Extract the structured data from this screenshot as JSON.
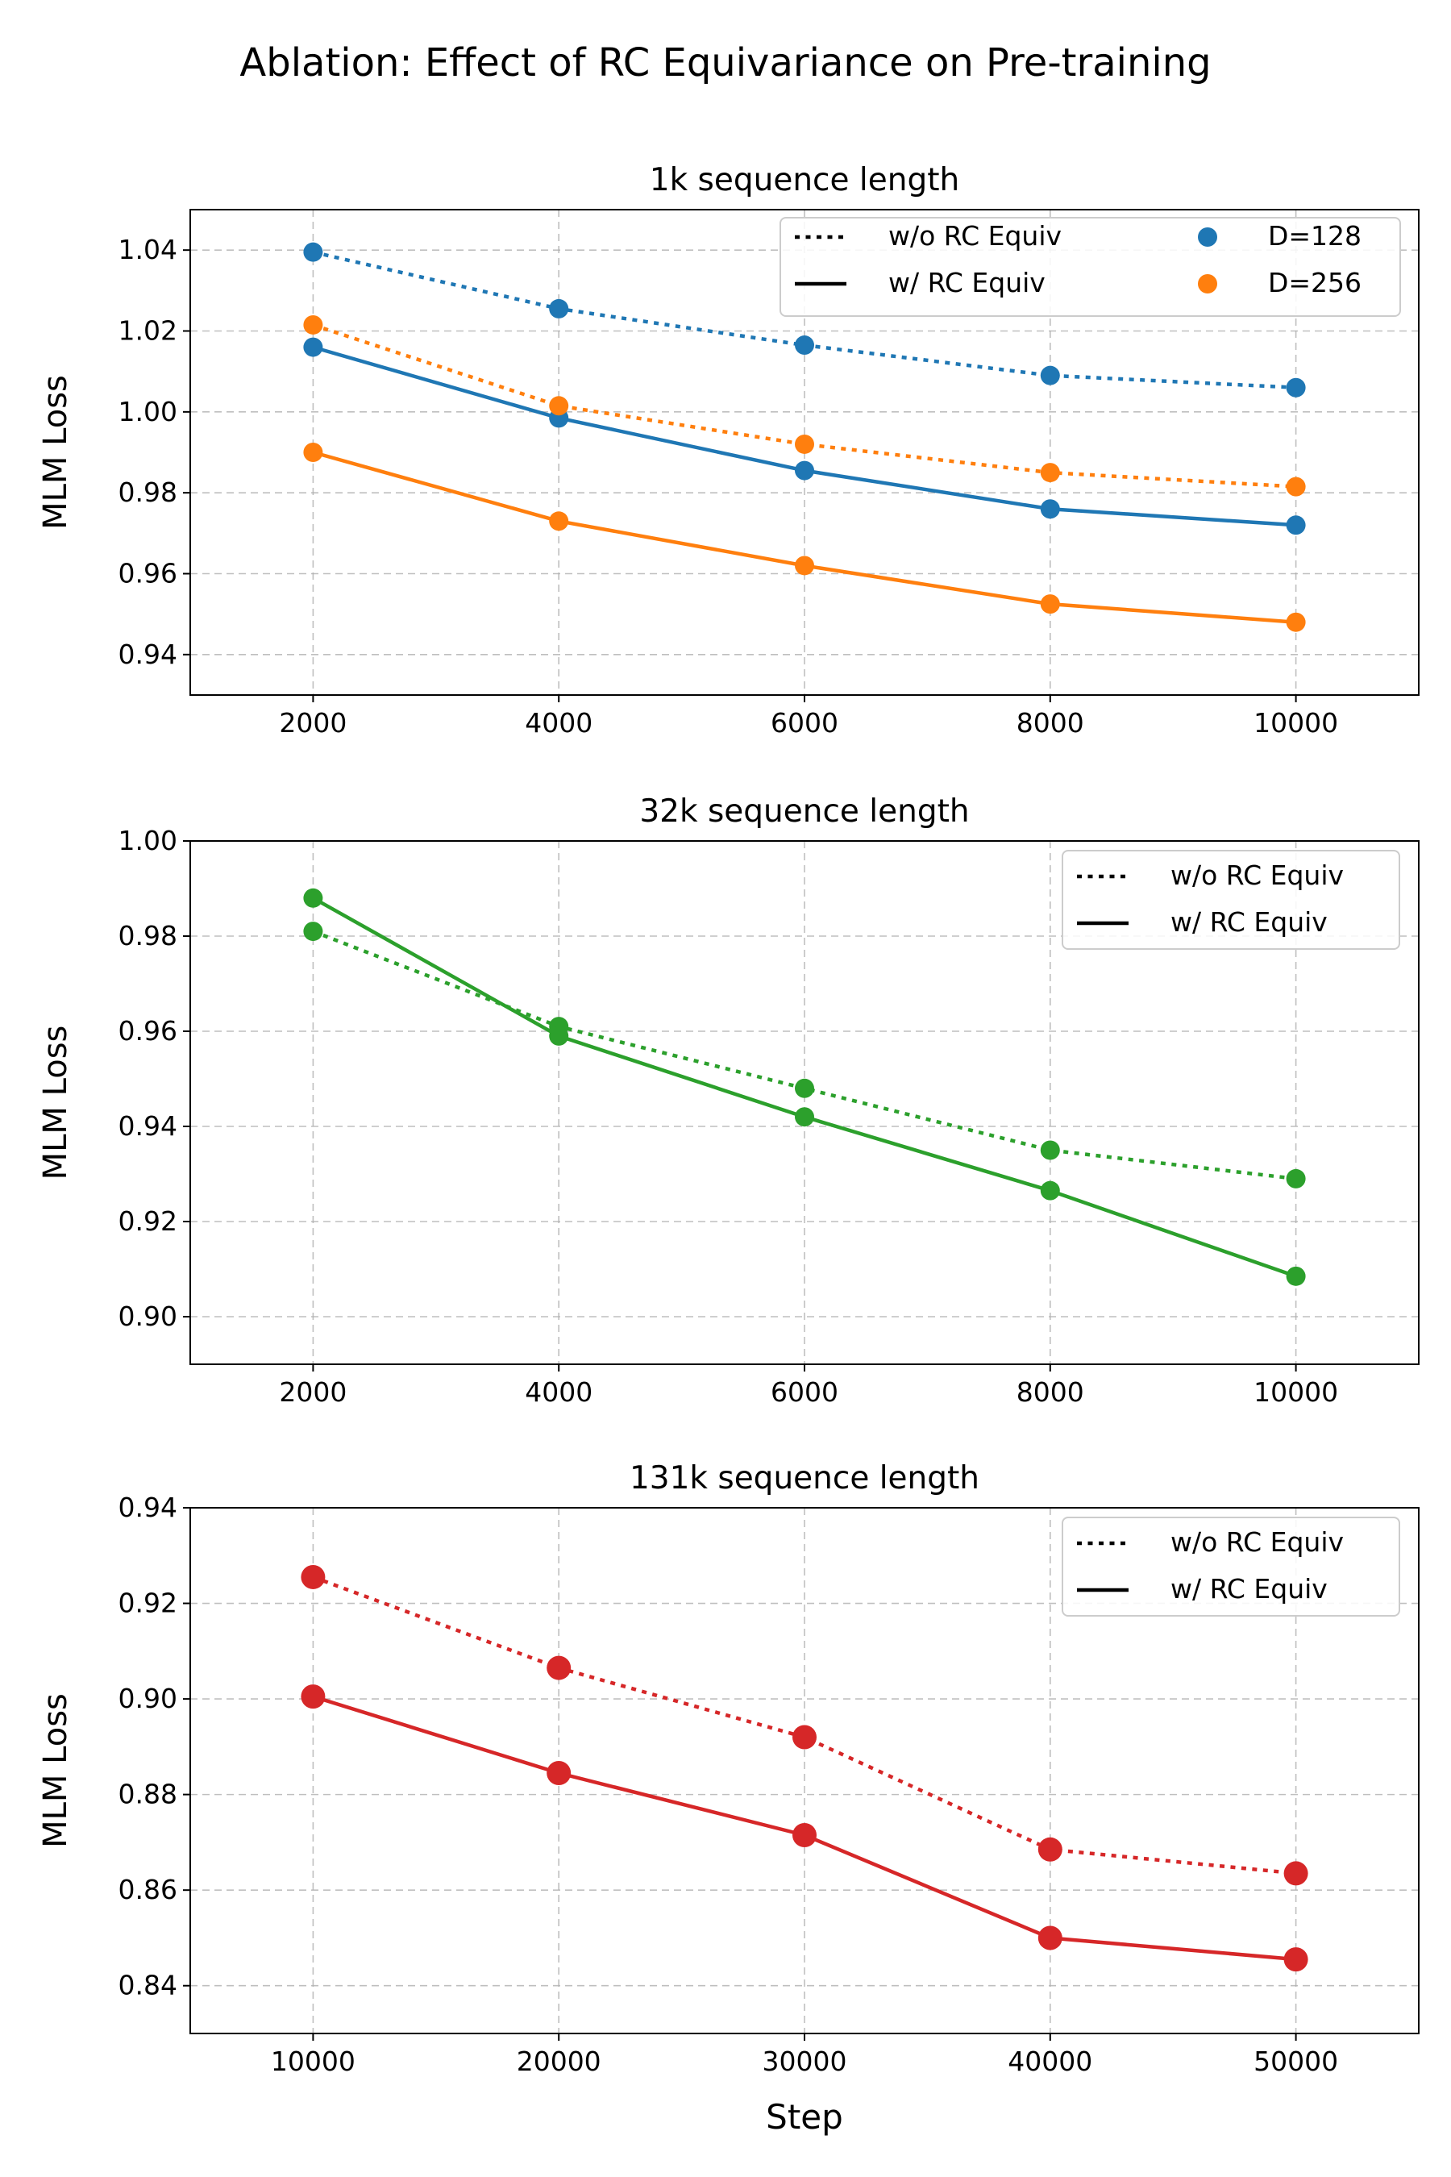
{
  "figure": {
    "title": "Ablation: Effect of RC Equivariance on Pre-training"
  },
  "legend_labels": {
    "without": "w/o RC Equiv",
    "with": "w/ RC Equiv",
    "d128": "D=128",
    "d256": "D=256"
  },
  "chart_data": [
    {
      "type": "line",
      "title": "1k sequence length",
      "xlabel": "",
      "ylabel": "MLM Loss",
      "x": [
        2000,
        4000,
        6000,
        8000,
        10000
      ],
      "xlim": [
        1000,
        11000
      ],
      "ylim": [
        0.93,
        1.05
      ],
      "xticks": [
        2000,
        4000,
        6000,
        8000,
        10000
      ],
      "yticks": [
        0.94,
        0.96,
        0.98,
        1.0,
        1.02,
        1.04
      ],
      "ytick_decimals": 2,
      "grid": true,
      "legend_position": "top-right",
      "legend_columns": 2,
      "series": [
        {
          "name": "D=128",
          "variant": "w/o RC Equiv",
          "style": "dotted",
          "color": "#1f77b4",
          "values": [
            1.0395,
            1.0255,
            1.0165,
            1.009,
            1.006
          ]
        },
        {
          "name": "D=128",
          "variant": "w/ RC Equiv",
          "style": "solid",
          "color": "#1f77b4",
          "values": [
            1.016,
            0.9985,
            0.9855,
            0.976,
            0.972
          ]
        },
        {
          "name": "D=256",
          "variant": "w/o RC Equiv",
          "style": "dotted",
          "color": "#ff7f0e",
          "values": [
            1.0215,
            1.0015,
            0.992,
            0.985,
            0.9815
          ]
        },
        {
          "name": "D=256",
          "variant": "w/ RC Equiv",
          "style": "solid",
          "color": "#ff7f0e",
          "values": [
            0.99,
            0.973,
            0.962,
            0.9525,
            0.948
          ]
        }
      ]
    },
    {
      "type": "line",
      "title": "32k sequence length",
      "xlabel": "",
      "ylabel": "MLM Loss",
      "x": [
        2000,
        4000,
        6000,
        8000,
        10000
      ],
      "xlim": [
        1000,
        11000
      ],
      "ylim": [
        0.89,
        1.0
      ],
      "xticks": [
        2000,
        4000,
        6000,
        8000,
        10000
      ],
      "yticks": [
        0.9,
        0.92,
        0.94,
        0.96,
        0.98,
        1.0
      ],
      "ytick_decimals": 2,
      "grid": true,
      "legend_position": "top-right",
      "legend_columns": 1,
      "series": [
        {
          "variant": "w/o RC Equiv",
          "style": "dotted",
          "color": "#2ca02c",
          "values": [
            0.981,
            0.961,
            0.948,
            0.935,
            0.929
          ]
        },
        {
          "variant": "w/ RC Equiv",
          "style": "solid",
          "color": "#2ca02c",
          "values": [
            0.988,
            0.959,
            0.942,
            0.9265,
            0.9085
          ]
        }
      ]
    },
    {
      "type": "line",
      "title": "131k sequence length",
      "xlabel": "Step",
      "ylabel": "MLM Loss",
      "x": [
        10000,
        20000,
        30000,
        40000,
        50000
      ],
      "xlim": [
        5000,
        55000
      ],
      "ylim": [
        0.83,
        0.94
      ],
      "xticks": [
        10000,
        20000,
        30000,
        40000,
        50000
      ],
      "yticks": [
        0.84,
        0.86,
        0.88,
        0.9,
        0.92,
        0.94
      ],
      "ytick_decimals": 2,
      "grid": true,
      "legend_position": "top-right",
      "legend_columns": 1,
      "series": [
        {
          "variant": "w/o RC Equiv",
          "style": "dotted",
          "color": "#d62728",
          "values": [
            0.9255,
            0.9065,
            0.892,
            0.8685,
            0.8635
          ]
        },
        {
          "variant": "w/ RC Equiv",
          "style": "solid",
          "color": "#d62728",
          "values": [
            0.9005,
            0.8845,
            0.8715,
            0.85,
            0.8455
          ]
        }
      ]
    }
  ]
}
